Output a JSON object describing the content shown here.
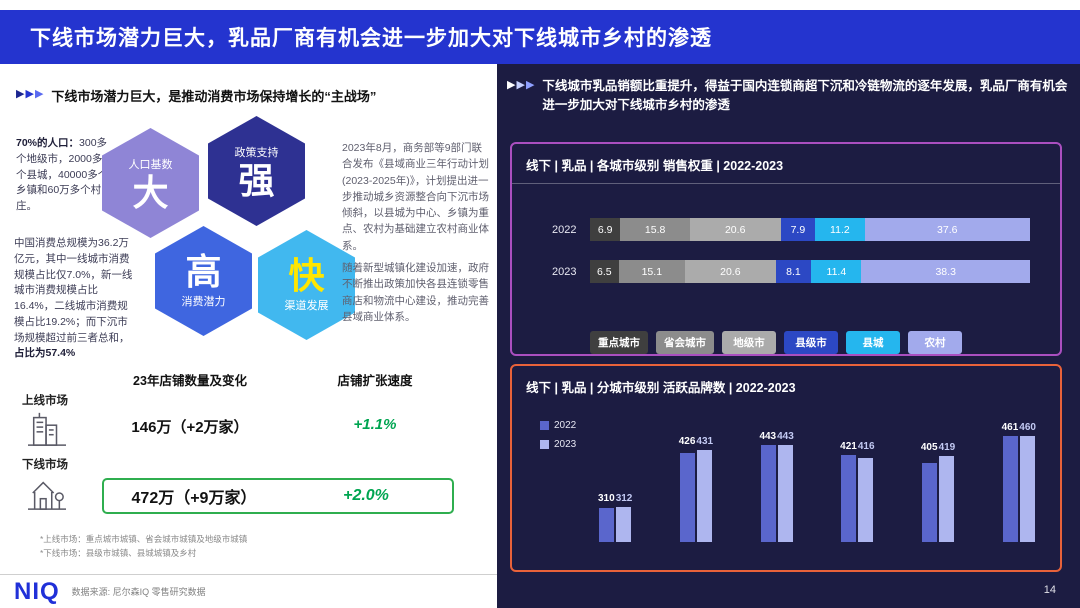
{
  "header": {
    "title": "下线市场潜力巨大，乳品厂商有机会进一步加大对下线城市乡村的渗透"
  },
  "left": {
    "subtitle": "下线市场潜力巨大，是推动消费市场保持增长的“主战场”",
    "population": {
      "lead": "70%的人口：",
      "body": "300多个地级市，2000多个县城，40000多个乡镇和60万多个村庄。"
    },
    "consumption": {
      "body": "中国消费总规模为36.2万亿元，其中一线城市消费规模占比仅7.0%，新一线城市消费规模占比16.4%，二线城市消费规模占比19.2%；而下沉市场规模超过前三者总和，",
      "bold": "占比为57.4%"
    },
    "hexagons": [
      {
        "label": "人口基数",
        "big": "大",
        "color": "#8f85d6"
      },
      {
        "label": "政策支持",
        "big": "强",
        "color": "#2e3192"
      },
      {
        "label": "消费潜力",
        "big": "高",
        "color": "#3f66e0"
      },
      {
        "label": "渠道发展",
        "big": "快",
        "color": "#41b8ef",
        "big_color": "#ffe600"
      }
    ],
    "policy1": "2023年8月，商务部等9部门联合发布《县域商业三年行动计划(2023-2025年)》，计划提出进一步推动城乡资源整合向下沉市场倾斜，以县城为中心、乡镇为重点、农村为基础建立农村商业体系。",
    "policy2": "随着新型城镇化建设加速，政府不断推出政策加快各县连锁零售商店和物流中心建设，推动完善县域商业体系。",
    "store": {
      "header_count": "23年店铺数量及变化",
      "header_speed": "店铺扩张速度",
      "rows": [
        {
          "label": "上线市场",
          "count": "146万（+2万家）",
          "growth": "+1.1%"
        },
        {
          "label": "下线市场",
          "count": "472万（+9万家）",
          "growth": "+2.0%"
        }
      ]
    },
    "footnotes": [
      "*上线市场：重点城市城镇、省会城市城镇及地级市城镇",
      "*下线市场：县级市城镇、县城城镇及乡村"
    ]
  },
  "footer": {
    "logo": "NIQ",
    "source": "数据来源: 尼尔森IQ 零售研究数据"
  },
  "right": {
    "subtitle": "下线城市乳品销额比重提升，得益于国内连锁商超下沉和冷链物流的逐年发展，乳品厂商有机会进一步加大对下线城市乡村的渗透",
    "page": "14"
  },
  "colors": {
    "header_bg": "#2434cf",
    "right_panel_bg": "#1c1c42",
    "chart1_border": "#aa4fc0",
    "chart2_border": "#e8623a",
    "growth_green": "#00a551"
  },
  "chart_data": [
    {
      "type": "bar",
      "subtype": "horizontal-stacked",
      "title": "线下 | 乳品 | 各城市级别 销售权重 | 2022-2023",
      "categories": [
        "2022",
        "2023"
      ],
      "series": [
        {
          "name": "重点城市",
          "color": "#3f3f3f",
          "values": [
            6.9,
            6.5
          ]
        },
        {
          "name": "省会城市",
          "color": "#8c8c8c",
          "values": [
            15.8,
            15.1
          ]
        },
        {
          "name": "地级市",
          "color": "#ababab",
          "values": [
            20.6,
            20.6
          ]
        },
        {
          "name": "县级市",
          "color": "#2c48c4",
          "values": [
            7.9,
            8.1
          ]
        },
        {
          "name": "县城",
          "color": "#25b6ee",
          "values": [
            11.2,
            11.4
          ]
        },
        {
          "name": "农村",
          "color": "#a2aaec",
          "values": [
            37.6,
            38.3
          ]
        }
      ],
      "xlim": [
        0,
        100
      ],
      "unit": "%",
      "legend_position": "bottom"
    },
    {
      "type": "bar",
      "subtype": "grouped-vertical",
      "title": "线下 | 乳品 | 分城市级别 活跃品牌数 | 2022-2023",
      "series": [
        {
          "name": "2022",
          "color": "#5a66cc",
          "values": [
            310,
            426,
            443,
            421,
            405,
            461
          ]
        },
        {
          "name": "2023",
          "color": "#aeb6ef",
          "values": [
            312,
            431,
            443,
            416,
            419,
            460
          ]
        }
      ],
      "ylim": [
        240,
        480
      ],
      "legend_position": "left"
    }
  ]
}
